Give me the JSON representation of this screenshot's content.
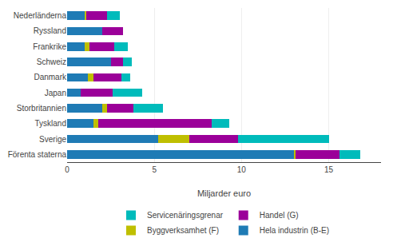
{
  "chart_data": {
    "type": "bar",
    "orientation": "horizontal",
    "stacked": true,
    "categories": [
      "Förenta staterna",
      "Sverige",
      "Tyskland",
      "Storbritannien",
      "Japan",
      "Danmark",
      "Schweiz",
      "Frankrike",
      "Ryssland",
      "Nederländerna"
    ],
    "series": [
      {
        "name": "Hela industrin (B-E)",
        "color": "#1F7BB5",
        "values": [
          13.0,
          5.2,
          1.5,
          2.0,
          0.8,
          1.2,
          2.5,
          1.0,
          2.0,
          1.0
        ]
      },
      {
        "name": "Byggverksamhet (F)",
        "color": "#BFBF00",
        "values": [
          0.1,
          1.8,
          0.3,
          0.3,
          0.0,
          0.3,
          0.0,
          0.3,
          0.0,
          0.1
        ]
      },
      {
        "name": "Handel (G)",
        "color": "#9B0099",
        "values": [
          2.5,
          2.8,
          6.5,
          1.5,
          1.8,
          1.6,
          0.7,
          1.4,
          1.2,
          1.2
        ]
      },
      {
        "name": "Servicenäringsgrenar",
        "color": "#00BBBB",
        "values": [
          1.2,
          5.2,
          1.0,
          1.7,
          1.7,
          0.5,
          0.5,
          0.8,
          0.0,
          0.7
        ]
      }
    ],
    "xlim": [
      0,
      18
    ],
    "xticks": [
      0,
      5,
      10,
      15
    ],
    "xlabel": "Miljarder euro",
    "grid": true,
    "legend": "bottom"
  }
}
